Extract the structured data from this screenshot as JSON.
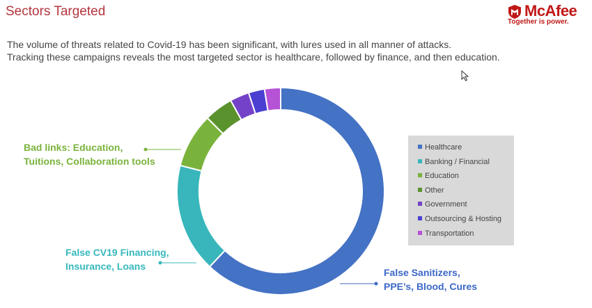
{
  "header": {
    "title": "Sectors Targeted",
    "logo_brand": "McAfee",
    "logo_tagline": "Together is power."
  },
  "description": {
    "line1": "The volume of threats related to Covid-19 has been significant, with lures used in all manner of attacks.",
    "line2": "Tracking these campaigns reveals the most targeted sector is healthcare, followed by finance, and then education."
  },
  "colors": {
    "title": "#b5343d",
    "brand": "#c01818"
  },
  "icons": [
    "mcafee-shield-icon",
    "mouse-cursor-icon"
  ],
  "chart_data": {
    "type": "pie",
    "style": "donut",
    "categories": [
      "Healthcare",
      "Banking / Financial",
      "Education",
      "Other",
      "Government",
      "Outsourcing & Hosting",
      "Transportation"
    ],
    "values": [
      62,
      17,
      8.5,
      4.5,
      3,
      2.5,
      2.5
    ],
    "colors": [
      "#4472c4",
      "#38b6bb",
      "#7ab33c",
      "#5a922d",
      "#7442c8",
      "#4a3fd1",
      "#b652d6"
    ],
    "legend_position": "right",
    "annotations": [
      {
        "category": "Education",
        "lines": [
          "Bad links: Education,",
          "Tuitions, Collaboration tools"
        ],
        "color": "#7ab33c"
      },
      {
        "category": "Banking / Financial",
        "lines": [
          "False CV19 Financing,",
          "Insurance, Loans"
        ],
        "color": "#37b8bd"
      },
      {
        "category": "Healthcare",
        "lines": [
          "False Sanitizers,",
          "PPE’s, Blood, Cures"
        ],
        "color": "#3b68c7"
      }
    ]
  }
}
